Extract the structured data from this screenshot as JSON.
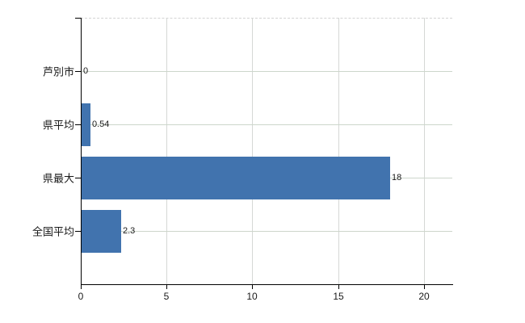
{
  "chart_data": {
    "type": "bar",
    "orientation": "horizontal",
    "title": "",
    "categories": [
      "芦別市",
      "県平均",
      "県最大",
      "全国平均"
    ],
    "values": [
      0,
      0.54,
      18,
      2.3
    ],
    "value_labels": [
      "0",
      "0.54",
      "18",
      "2.3"
    ],
    "x_tick_labels": [
      "0",
      "5",
      "10",
      "15",
      "20"
    ],
    "x_tick_values": [
      0,
      5,
      10,
      15,
      20
    ],
    "xlim": [
      0,
      21.65
    ],
    "grid": true,
    "legend": false,
    "top_border_style": "dashed",
    "colors": {
      "bar": "#4173ae",
      "axis": "#000000",
      "horizontal_grid": "#cdd6cb",
      "vertical_grid": "#d5d8d5",
      "top_border": "#d3d3d3",
      "text": "#1a1a1a",
      "background": "#ffffff"
    }
  }
}
